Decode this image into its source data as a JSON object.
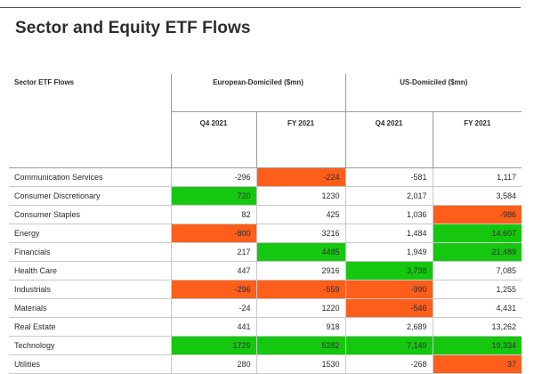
{
  "page": {
    "title": "Sector and Equity ETF Flows"
  },
  "table": {
    "corner_label": "Sector ETF Flows",
    "groups": [
      {
        "label": "European-Domiciled ($mn)"
      },
      {
        "label": "US-Domiciled ($mn)"
      }
    ],
    "subheaders": [
      "Q4 2021",
      "FY 2021",
      "Q4 2021",
      "FY 2021"
    ],
    "highlight_colors": {
      "positive": "#15c80f",
      "negative": "#ff5e1b"
    },
    "rows": [
      {
        "sector": "Communication Services",
        "cells": [
          {
            "value": "-296",
            "hl": ""
          },
          {
            "value": "-224",
            "hl": "neg"
          },
          {
            "value": "-581",
            "hl": ""
          },
          {
            "value": "1,117",
            "hl": ""
          }
        ]
      },
      {
        "sector": "Consumer Discretionary",
        "cells": [
          {
            "value": "720",
            "hl": "pos"
          },
          {
            "value": "1230",
            "hl": ""
          },
          {
            "value": "2,017",
            "hl": ""
          },
          {
            "value": "3,584",
            "hl": ""
          }
        ]
      },
      {
        "sector": "Consumer Staples",
        "cells": [
          {
            "value": "82",
            "hl": ""
          },
          {
            "value": "425",
            "hl": ""
          },
          {
            "value": "1,036",
            "hl": ""
          },
          {
            "value": "-986",
            "hl": "neg"
          }
        ]
      },
      {
        "sector": "Energy",
        "cells": [
          {
            "value": "-800",
            "hl": "neg"
          },
          {
            "value": "3216",
            "hl": ""
          },
          {
            "value": "1,484",
            "hl": ""
          },
          {
            "value": "14,607",
            "hl": "pos"
          }
        ]
      },
      {
        "sector": "Financials",
        "cells": [
          {
            "value": "217",
            "hl": ""
          },
          {
            "value": "4485",
            "hl": "pos"
          },
          {
            "value": "1,949",
            "hl": ""
          },
          {
            "value": "21,489",
            "hl": "pos"
          }
        ]
      },
      {
        "sector": "Health Care",
        "cells": [
          {
            "value": "447",
            "hl": ""
          },
          {
            "value": "2916",
            "hl": ""
          },
          {
            "value": "3,738",
            "hl": "pos"
          },
          {
            "value": "7,085",
            "hl": ""
          }
        ]
      },
      {
        "sector": "Industrials",
        "cells": [
          {
            "value": "-296",
            "hl": "neg"
          },
          {
            "value": "-559",
            "hl": "neg"
          },
          {
            "value": "-990",
            "hl": "neg"
          },
          {
            "value": "1,255",
            "hl": ""
          }
        ]
      },
      {
        "sector": "Materials",
        "cells": [
          {
            "value": "-24",
            "hl": ""
          },
          {
            "value": "1220",
            "hl": ""
          },
          {
            "value": "-546",
            "hl": "neg"
          },
          {
            "value": "4,431",
            "hl": ""
          }
        ]
      },
      {
        "sector": "Real Estate",
        "cells": [
          {
            "value": "441",
            "hl": ""
          },
          {
            "value": "918",
            "hl": ""
          },
          {
            "value": "2,689",
            "hl": ""
          },
          {
            "value": "13,262",
            "hl": ""
          }
        ]
      },
      {
        "sector": "Technology",
        "cells": [
          {
            "value": "1729",
            "hl": "pos"
          },
          {
            "value": "5282",
            "hl": "pos"
          },
          {
            "value": "7,149",
            "hl": "pos"
          },
          {
            "value": "19,334",
            "hl": "pos"
          }
        ]
      },
      {
        "sector": "Utilities",
        "cells": [
          {
            "value": "280",
            "hl": ""
          },
          {
            "value": "1530",
            "hl": ""
          },
          {
            "value": "-268",
            "hl": ""
          },
          {
            "value": "37",
            "hl": "neg"
          }
        ]
      }
    ]
  }
}
